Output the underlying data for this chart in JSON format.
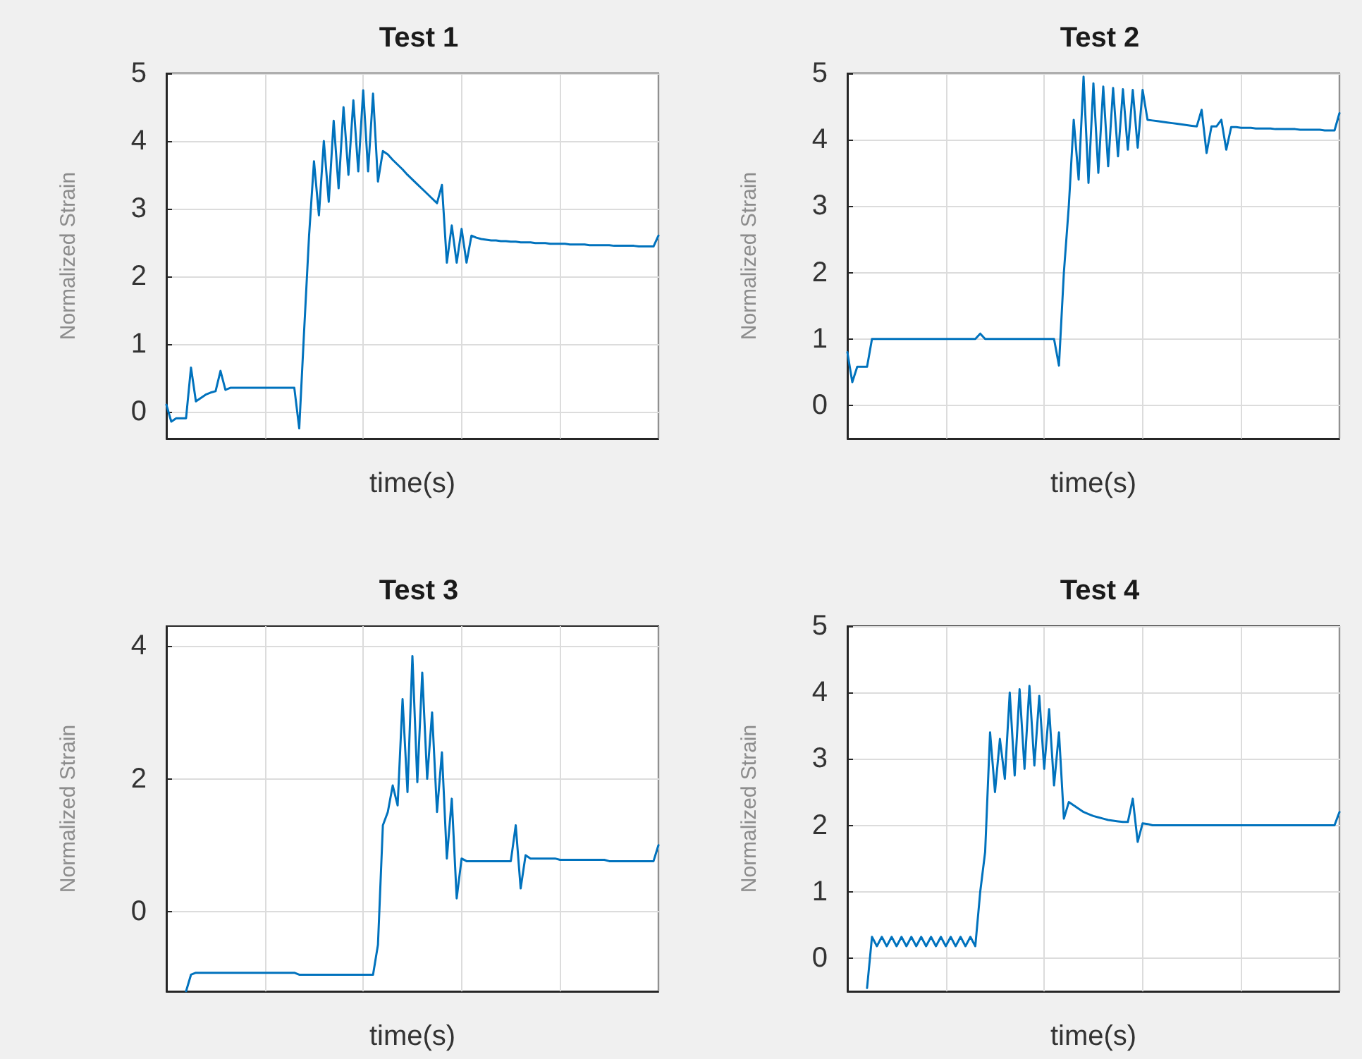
{
  "chart_data": [
    {
      "type": "line",
      "title": "Test 1",
      "xlabel": "time(s)",
      "ylabel": "Normalized Strain",
      "ylim": [
        -0.4,
        5
      ],
      "yticks": [
        0,
        1,
        2,
        3,
        4,
        5
      ],
      "grid": true,
      "tick_labels": "y",
      "categories": [
        null,
        null,
        null,
        null,
        null,
        null,
        null,
        null,
        null,
        null,
        null,
        null,
        null,
        null,
        null,
        null,
        null,
        null,
        null,
        null,
        null,
        null,
        null,
        null,
        null,
        null,
        null,
        null,
        null,
        null,
        null,
        null,
        null,
        null,
        null,
        null,
        null,
        null,
        null,
        null,
        null,
        null,
        null,
        null,
        null,
        null,
        null,
        null,
        null,
        null,
        null,
        null,
        null,
        null,
        null,
        null,
        null,
        null,
        null,
        null,
        null,
        null,
        null,
        null,
        null,
        null,
        null,
        null,
        null,
        null,
        null,
        null,
        null,
        null,
        null,
        null,
        null,
        null,
        null,
        null,
        null,
        null,
        null,
        null,
        null,
        null,
        null,
        null,
        null,
        null,
        null,
        null,
        null,
        null,
        null,
        null,
        null,
        null,
        null,
        null,
        null
      ],
      "series": [
        {
          "color": "#0072bd",
          "values": [
            0.1,
            -0.15,
            -0.1,
            -0.1,
            -0.1,
            0.65,
            0.15,
            0.2,
            0.25,
            0.28,
            0.3,
            0.6,
            0.32,
            0.35,
            0.35,
            0.35,
            0.35,
            0.35,
            0.35,
            0.35,
            0.35,
            0.35,
            0.35,
            0.35,
            0.35,
            0.35,
            0.35,
            -0.25,
            1.2,
            2.6,
            3.7,
            2.9,
            4.0,
            3.1,
            4.3,
            3.3,
            4.5,
            3.5,
            4.6,
            3.55,
            4.75,
            3.55,
            4.7,
            3.4,
            3.85,
            3.8,
            3.72,
            3.65,
            3.58,
            3.5,
            3.43,
            3.36,
            3.29,
            3.22,
            3.15,
            3.08,
            3.35,
            2.2,
            2.75,
            2.2,
            2.7,
            2.2,
            2.6,
            2.57,
            2.55,
            2.54,
            2.53,
            2.53,
            2.52,
            2.52,
            2.51,
            2.51,
            2.5,
            2.5,
            2.5,
            2.49,
            2.49,
            2.49,
            2.48,
            2.48,
            2.48,
            2.48,
            2.47,
            2.47,
            2.47,
            2.47,
            2.46,
            2.46,
            2.46,
            2.46,
            2.46,
            2.45,
            2.45,
            2.45,
            2.45,
            2.45,
            2.44,
            2.44,
            2.44,
            2.44,
            2.6
          ]
        }
      ]
    },
    {
      "type": "line",
      "title": "Test 2",
      "xlabel": "time(s)",
      "ylabel": "Normalized Strain",
      "ylim": [
        -0.5,
        5
      ],
      "yticks": [
        0,
        1,
        2,
        3,
        4,
        5
      ],
      "grid": true,
      "tick_labels": "y",
      "categories": [
        null,
        null,
        null,
        null,
        null,
        null,
        null,
        null,
        null,
        null,
        null,
        null,
        null,
        null,
        null,
        null,
        null,
        null,
        null,
        null,
        null,
        null,
        null,
        null,
        null,
        null,
        null,
        null,
        null,
        null,
        null,
        null,
        null,
        null,
        null,
        null,
        null,
        null,
        null,
        null,
        null,
        null,
        null,
        null,
        null,
        null,
        null,
        null,
        null,
        null,
        null,
        null,
        null,
        null,
        null,
        null,
        null,
        null,
        null,
        null,
        null,
        null,
        null,
        null,
        null,
        null,
        null,
        null,
        null,
        null,
        null,
        null,
        null,
        null,
        null,
        null,
        null,
        null,
        null,
        null,
        null,
        null,
        null,
        null,
        null,
        null,
        null,
        null,
        null,
        null,
        null,
        null,
        null,
        null,
        null,
        null,
        null,
        null,
        null,
        null,
        null
      ],
      "series": [
        {
          "color": "#0072bd",
          "values": [
            0.8,
            0.35,
            0.58,
            0.58,
            0.58,
            1.0,
            1.0,
            1.0,
            1.0,
            1.0,
            1.0,
            1.0,
            1.0,
            1.0,
            1.0,
            1.0,
            1.0,
            1.0,
            1.0,
            1.0,
            1.0,
            1.0,
            1.0,
            1.0,
            1.0,
            1.0,
            1.0,
            1.08,
            1.0,
            1.0,
            1.0,
            1.0,
            1.0,
            1.0,
            1.0,
            1.0,
            1.0,
            1.0,
            1.0,
            1.0,
            1.0,
            1.0,
            1.0,
            0.6,
            2.0,
            3.0,
            4.3,
            3.4,
            4.95,
            3.35,
            4.85,
            3.5,
            4.8,
            3.6,
            4.78,
            3.75,
            4.76,
            3.85,
            4.75,
            3.88,
            4.75,
            4.3,
            4.29,
            4.28,
            4.27,
            4.26,
            4.25,
            4.24,
            4.23,
            4.22,
            4.21,
            4.2,
            4.45,
            3.8,
            4.2,
            4.2,
            4.3,
            3.85,
            4.19,
            4.19,
            4.18,
            4.18,
            4.18,
            4.17,
            4.17,
            4.17,
            4.17,
            4.16,
            4.16,
            4.16,
            4.16,
            4.16,
            4.15,
            4.15,
            4.15,
            4.15,
            4.15,
            4.14,
            4.14,
            4.14,
            4.4
          ]
        }
      ]
    },
    {
      "type": "line",
      "title": "Test 3",
      "xlabel": "time(s)",
      "ylabel": "Normalized Strain",
      "ylim": [
        -1.2,
        4.3
      ],
      "yticks": [
        0,
        2,
        4
      ],
      "grid": true,
      "tick_labels": "y",
      "categories": [
        null,
        null,
        null,
        null,
        null,
        null,
        null,
        null,
        null,
        null,
        null,
        null,
        null,
        null,
        null,
        null,
        null,
        null,
        null,
        null,
        null,
        null,
        null,
        null,
        null,
        null,
        null,
        null,
        null,
        null,
        null,
        null,
        null,
        null,
        null,
        null,
        null,
        null,
        null,
        null,
        null,
        null,
        null,
        null,
        null,
        null,
        null,
        null,
        null,
        null,
        null,
        null,
        null,
        null,
        null,
        null,
        null,
        null,
        null,
        null,
        null,
        null,
        null,
        null,
        null,
        null,
        null,
        null,
        null,
        null,
        null,
        null,
        null,
        null,
        null,
        null,
        null,
        null,
        null,
        null,
        null,
        null,
        null,
        null,
        null,
        null,
        null,
        null,
        null,
        null,
        null,
        null,
        null,
        null,
        null,
        null,
        null,
        null,
        null,
        null,
        null
      ],
      "series": [
        {
          "color": "#0072bd",
          "values": [
            null,
            null,
            null,
            null,
            -1.2,
            -0.95,
            -0.92,
            -0.92,
            -0.92,
            -0.92,
            -0.92,
            -0.92,
            -0.92,
            -0.92,
            -0.92,
            -0.92,
            -0.92,
            -0.92,
            -0.92,
            -0.92,
            -0.92,
            -0.92,
            -0.92,
            -0.92,
            -0.92,
            -0.92,
            -0.92,
            -0.95,
            -0.95,
            -0.95,
            -0.95,
            -0.95,
            -0.95,
            -0.95,
            -0.95,
            -0.95,
            -0.95,
            -0.95,
            -0.95,
            -0.95,
            -0.95,
            -0.95,
            -0.95,
            -0.5,
            1.3,
            1.5,
            1.9,
            1.6,
            3.2,
            1.8,
            3.85,
            1.95,
            3.6,
            2.0,
            3.0,
            1.5,
            2.4,
            0.8,
            1.7,
            0.2,
            0.8,
            0.76,
            0.76,
            0.76,
            0.76,
            0.76,
            0.76,
            0.76,
            0.76,
            0.76,
            0.76,
            1.3,
            0.35,
            0.85,
            0.8,
            0.8,
            0.8,
            0.8,
            0.8,
            0.8,
            0.78,
            0.78,
            0.78,
            0.78,
            0.78,
            0.78,
            0.78,
            0.78,
            0.78,
            0.78,
            0.76,
            0.76,
            0.76,
            0.76,
            0.76,
            0.76,
            0.76,
            0.76,
            0.76,
            0.76,
            1.0
          ]
        }
      ]
    },
    {
      "type": "line",
      "title": "Test 4",
      "xlabel": "time(s)",
      "ylabel": "Normalized Strain",
      "ylim": [
        -0.5,
        5
      ],
      "yticks": [
        0,
        1,
        2,
        3,
        4,
        5
      ],
      "grid": true,
      "tick_labels": "y",
      "categories": [
        null,
        null,
        null,
        null,
        null,
        null,
        null,
        null,
        null,
        null,
        null,
        null,
        null,
        null,
        null,
        null,
        null,
        null,
        null,
        null,
        null,
        null,
        null,
        null,
        null,
        null,
        null,
        null,
        null,
        null,
        null,
        null,
        null,
        null,
        null,
        null,
        null,
        null,
        null,
        null,
        null,
        null,
        null,
        null,
        null,
        null,
        null,
        null,
        null,
        null,
        null,
        null,
        null,
        null,
        null,
        null,
        null,
        null,
        null,
        null,
        null,
        null,
        null,
        null,
        null,
        null,
        null,
        null,
        null,
        null,
        null,
        null,
        null,
        null,
        null,
        null,
        null,
        null,
        null,
        null,
        null,
        null,
        null,
        null,
        null,
        null,
        null,
        null,
        null,
        null,
        null,
        null,
        null,
        null,
        null,
        null,
        null,
        null,
        null,
        null,
        null
      ],
      "series": [
        {
          "color": "#0072bd",
          "values": [
            null,
            null,
            null,
            null,
            -0.45,
            0.32,
            0.18,
            0.32,
            0.18,
            0.32,
            0.18,
            0.32,
            0.18,
            0.32,
            0.18,
            0.32,
            0.18,
            0.32,
            0.18,
            0.32,
            0.18,
            0.32,
            0.18,
            0.32,
            0.18,
            0.32,
            0.18,
            1.0,
            1.6,
            3.4,
            2.5,
            3.3,
            2.7,
            4.0,
            2.75,
            4.05,
            2.85,
            4.1,
            2.9,
            3.95,
            2.85,
            3.75,
            2.6,
            3.4,
            2.1,
            2.35,
            2.3,
            2.25,
            2.2,
            2.17,
            2.14,
            2.12,
            2.1,
            2.08,
            2.07,
            2.06,
            2.05,
            2.05,
            2.4,
            1.75,
            2.03,
            2.02,
            2.0,
            2.0,
            2.0,
            2.0,
            2.0,
            2.0,
            2.0,
            2.0,
            2.0,
            2.0,
            2.0,
            2.0,
            2.0,
            2.0,
            2.0,
            2.0,
            2.0,
            2.0,
            2.0,
            2.0,
            2.0,
            2.0,
            2.0,
            2.0,
            2.0,
            2.0,
            2.0,
            2.0,
            2.0,
            2.0,
            2.0,
            2.0,
            2.0,
            2.0,
            2.0,
            2.0,
            2.0,
            2.0,
            2.2
          ]
        }
      ]
    }
  ]
}
